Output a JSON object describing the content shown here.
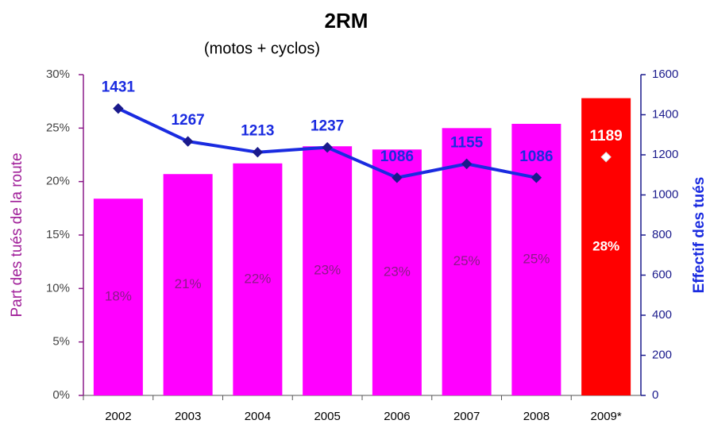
{
  "chart_data": {
    "type": "bar-line",
    "title": "2RM",
    "subtitle": "(motos + cyclos)",
    "y_label": "Part des tués de la route",
    "y2_label": "Effectif des tués",
    "categories": [
      "2002",
      "2003",
      "2004",
      "2005",
      "2006",
      "2007",
      "2008",
      "2009*"
    ],
    "ylim": [
      0,
      30
    ],
    "yticks": [
      {
        "value": 0,
        "label": "0%"
      },
      {
        "value": 5,
        "label": "5%"
      },
      {
        "value": 10,
        "label": "10%"
      },
      {
        "value": 15,
        "label": "15%"
      },
      {
        "value": 20,
        "label": "20%"
      },
      {
        "value": 25,
        "label": "25%"
      },
      {
        "value": 30,
        "label": "30%"
      }
    ],
    "y2lim": [
      0,
      1600
    ],
    "y2ticks": [
      0,
      200,
      400,
      600,
      800,
      1000,
      1200,
      1400,
      1600
    ],
    "series": [
      {
        "type": "bar",
        "axis": "y",
        "colors": [
          "#ff00ff",
          "#ff00ff",
          "#ff00ff",
          "#ff00ff",
          "#ff00ff",
          "#ff00ff",
          "#ff00ff",
          "#ff0000"
        ],
        "label_colors": [
          "#8b1a89",
          "#8b1a89",
          "#8b1a89",
          "#8b1a89",
          "#8b1a89",
          "#8b1a89",
          "#8b1a89",
          "#ffffff"
        ],
        "values": [
          18.4,
          20.7,
          21.7,
          23.3,
          23.0,
          25.0,
          25.4,
          27.8
        ],
        "value_labels": [
          "18%",
          "21%",
          "22%",
          "23%",
          "23%",
          "25%",
          "25%",
          "28%"
        ]
      },
      {
        "type": "line",
        "axis": "y2",
        "color": "#1a2be0",
        "marker": "#1a1a8c",
        "label_color": "#1a2be0",
        "values": [
          1431,
          1267,
          1213,
          1237,
          1086,
          1155,
          1086,
          null
        ]
      },
      {
        "type": "line",
        "axis": "y2",
        "color": "#1a2be0",
        "marker": "#ffffff",
        "label_color": "#ffffff",
        "values": [
          null,
          null,
          null,
          null,
          null,
          null,
          null,
          1189
        ]
      }
    ]
  }
}
